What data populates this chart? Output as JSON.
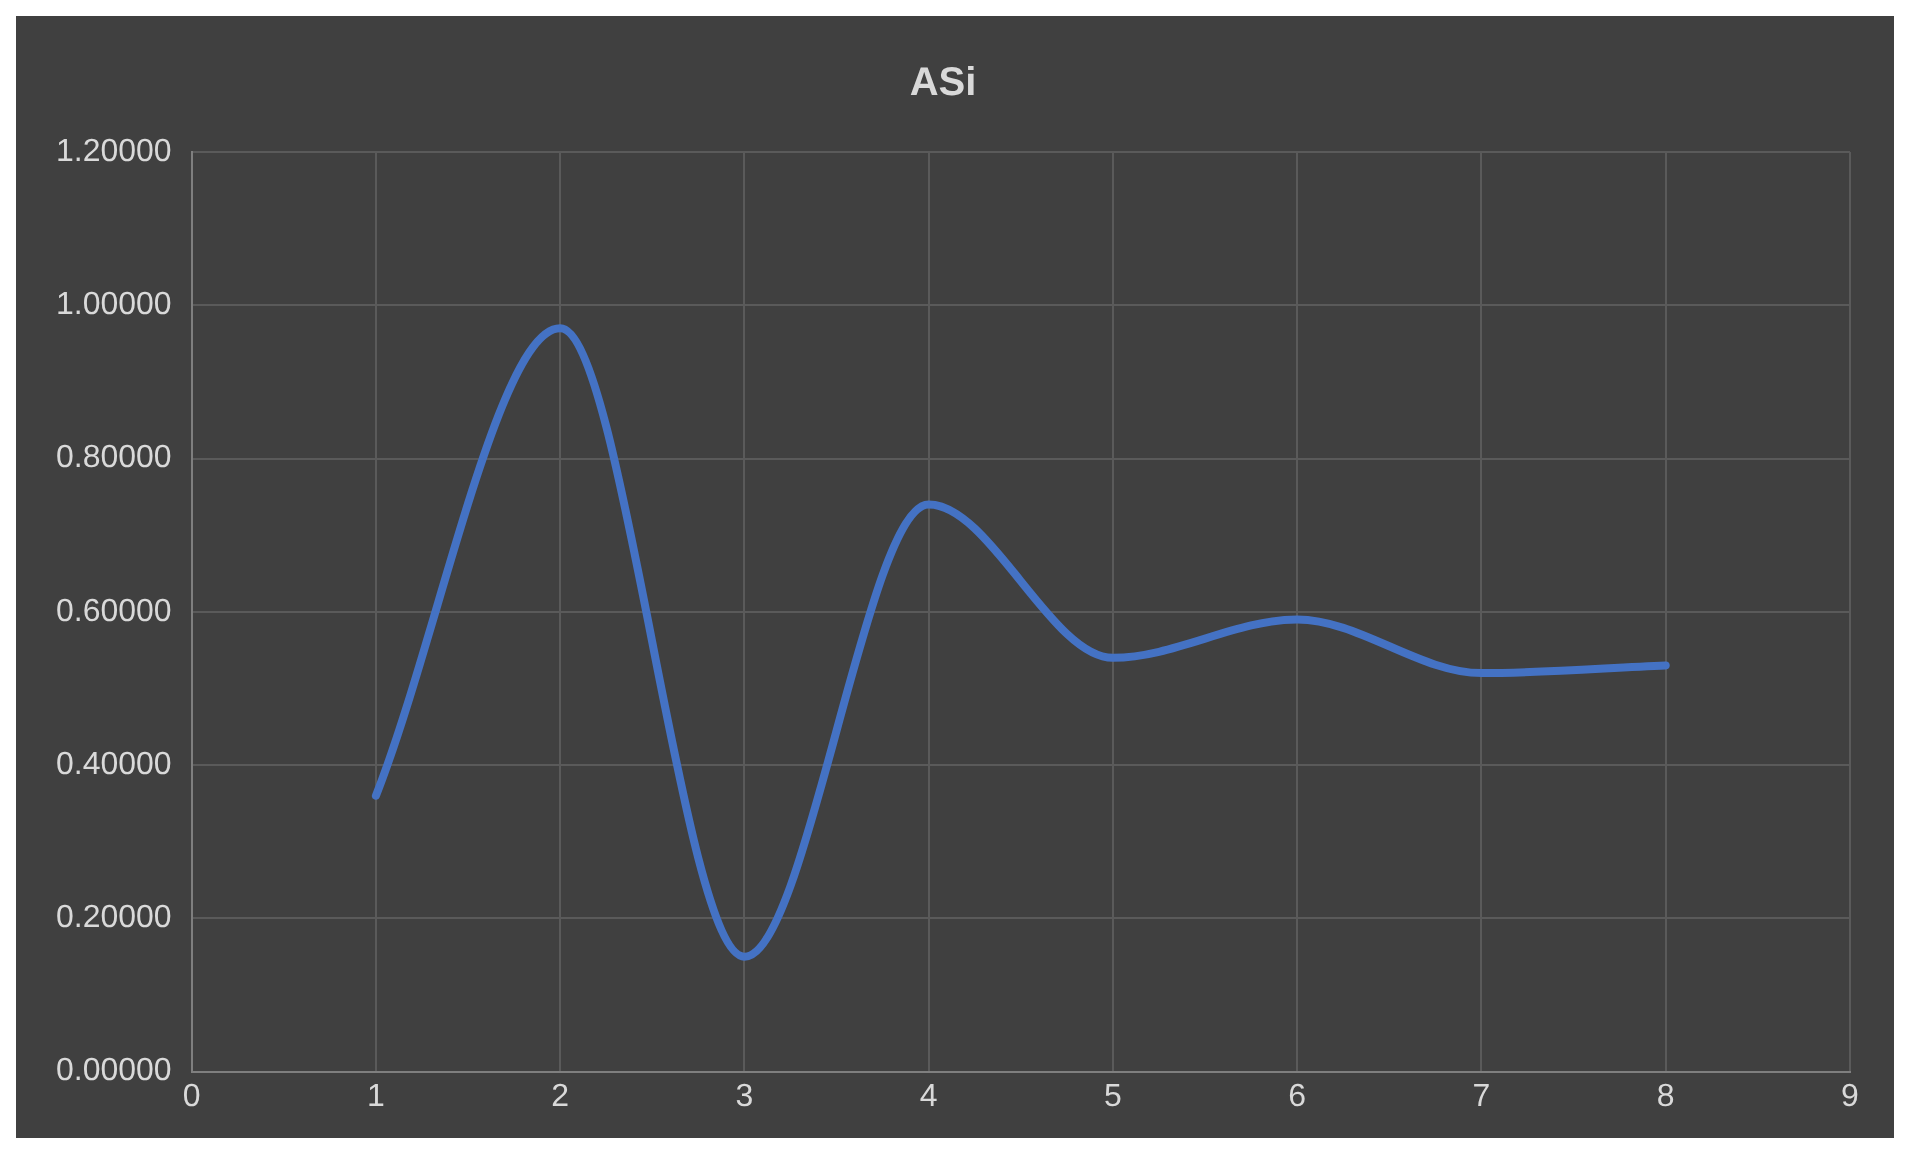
{
  "chart_data": {
    "type": "line",
    "title": "ASi",
    "x": [
      1,
      2,
      3,
      4,
      5,
      6,
      7,
      8
    ],
    "series": [
      {
        "color": "#4472c4",
        "values": [
          0.36,
          0.97,
          0.15,
          0.74,
          0.54,
          0.59,
          0.52,
          0.53
        ]
      }
    ],
    "xlim": [
      0,
      9
    ],
    "xticks": [
      0,
      1,
      2,
      3,
      4,
      5,
      6,
      7,
      8,
      9
    ],
    "ylim": [
      0,
      1.2
    ],
    "yticks": [
      {
        "value": 0,
        "label": "0.00000"
      },
      {
        "value": 0.2,
        "label": "0.20000"
      },
      {
        "value": 0.4,
        "label": "0.40000"
      },
      {
        "value": 0.6,
        "label": "0.60000"
      },
      {
        "value": 0.8,
        "label": "0.80000"
      },
      {
        "value": 1,
        "label": "1.00000"
      },
      {
        "value": 1.2,
        "label": "1.20000"
      }
    ],
    "grid": true,
    "legend": false,
    "marker": "none",
    "line_style": "solid"
  }
}
